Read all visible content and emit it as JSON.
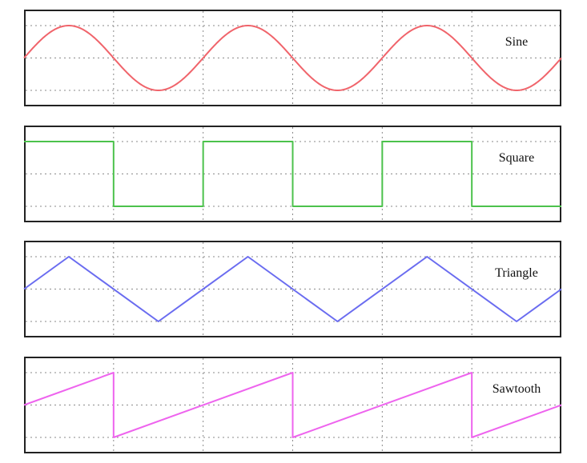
{
  "chart_data": [
    {
      "type": "line",
      "label": "Sine",
      "waveform": "sine",
      "color": "#f0646b",
      "periods": 3,
      "x": [
        0,
        6
      ],
      "ylim": [
        -1.5,
        1.5
      ],
      "grid": true
    },
    {
      "type": "line",
      "label": "Square",
      "waveform": "square",
      "color": "#4cc24c",
      "periods": 3,
      "x": [
        0,
        6
      ],
      "ylim": [
        -1.5,
        1.5
      ],
      "grid": true
    },
    {
      "type": "line",
      "label": "Triangle",
      "waveform": "triangle",
      "color": "#6a6cf0",
      "periods": 3,
      "x": [
        0,
        6
      ],
      "ylim": [
        -1.5,
        1.5
      ],
      "grid": true
    },
    {
      "type": "line",
      "label": "Sawtooth",
      "waveform": "sawtooth",
      "color": "#ee64ee",
      "periods": 3,
      "x": [
        0,
        6
      ],
      "ylim": [
        -1.5,
        1.5
      ],
      "grid": true
    }
  ]
}
